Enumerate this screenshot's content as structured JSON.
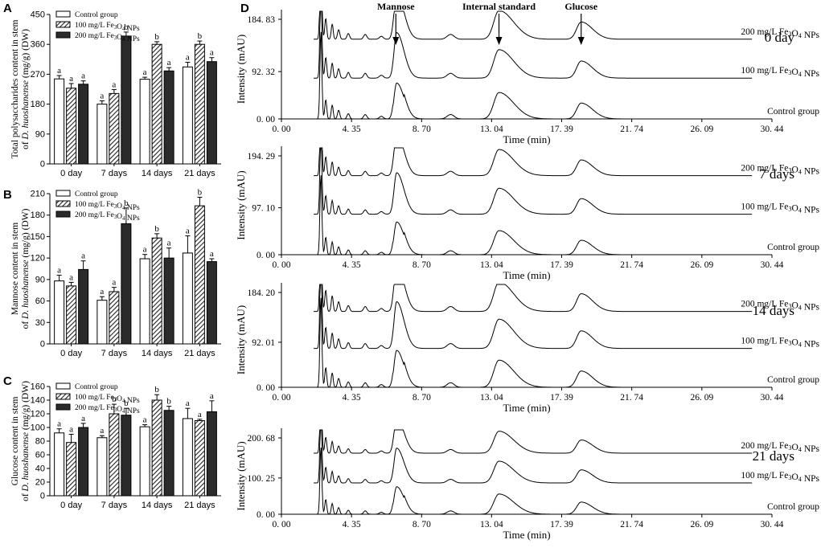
{
  "chart_data": [
    {
      "panel": "A",
      "type": "bar",
      "ylabel": "Total polysaccharides content in stem of D. huoshanense (mg/g) (DW)",
      "ylim": [
        0,
        450
      ],
      "yticks": [
        "0",
        "90",
        "180",
        "270",
        "360",
        "450"
      ],
      "categories": [
        "0 day",
        "7 days",
        "14 days",
        "21 days"
      ],
      "legend_position": "top-left",
      "series": [
        {
          "name": "Control group",
          "values": [
            256,
            180,
            255,
            292
          ],
          "errors": [
            10,
            10,
            6,
            14
          ],
          "letters": [
            "a",
            "a",
            "a",
            "a"
          ]
        },
        {
          "name": "100 mg/L Fe3O4 NPs",
          "values": [
            228,
            212,
            360,
            360
          ],
          "errors": [
            14,
            12,
            8,
            10
          ],
          "letters": [
            "a",
            "a",
            "b",
            "b"
          ]
        },
        {
          "name": "200 mg/L Fe3O4 NPs",
          "values": [
            240,
            385,
            280,
            308
          ],
          "errors": [
            10,
            12,
            10,
            12
          ],
          "letters": [
            "a",
            "b",
            "a",
            "a"
          ]
        }
      ]
    },
    {
      "panel": "B",
      "type": "bar",
      "ylabel": "Mannose content in stem of D. huoshanense (mg/g) (DW)",
      "ylim": [
        0,
        210
      ],
      "yticks": [
        "0",
        "30",
        "60",
        "90",
        "120",
        "150",
        "180",
        "210"
      ],
      "categories": [
        "0 day",
        "7 days",
        "14 days",
        "21 days"
      ],
      "legend_position": "top-left",
      "series": [
        {
          "name": "Control group",
          "values": [
            88,
            61,
            119,
            127
          ],
          "errors": [
            8,
            5,
            6,
            24
          ],
          "letters": [
            "a",
            "a",
            "a",
            "a"
          ]
        },
        {
          "name": "100 mg/L Fe3O4 NPs",
          "values": [
            81,
            73,
            148,
            193
          ],
          "errors": [
            5,
            6,
            6,
            12
          ],
          "letters": [
            "a",
            "a",
            "b",
            "b"
          ]
        },
        {
          "name": "200 mg/L Fe3O4 NPs",
          "values": [
            104,
            168,
            120,
            115
          ],
          "errors": [
            12,
            22,
            14,
            4
          ],
          "letters": [
            "a",
            "b",
            "a",
            "a"
          ]
        }
      ]
    },
    {
      "panel": "C",
      "type": "bar",
      "ylabel": "Glucose content in stem of D. huoshanense (mg/g) (DW)",
      "ylim": [
        0,
        160
      ],
      "yticks": [
        "0",
        "20",
        "40",
        "60",
        "80",
        "100",
        "120",
        "140",
        "160"
      ],
      "categories": [
        "0 day",
        "7 days",
        "14 days",
        "21 days"
      ],
      "legend_position": "top-left",
      "series": [
        {
          "name": "Control group",
          "values": [
            92,
            85,
            101,
            113
          ],
          "errors": [
            6,
            3,
            3,
            15
          ],
          "letters": [
            "a",
            "a",
            "a",
            "a"
          ]
        },
        {
          "name": "100 mg/L Fe3O4 NPs",
          "values": [
            78,
            120,
            140,
            110
          ],
          "errors": [
            12,
            14,
            8,
            2
          ],
          "letters": [
            "a",
            "b",
            "b",
            "a"
          ]
        },
        {
          "name": "200 mg/L Fe3O4 NPs",
          "values": [
            100,
            118,
            125,
            123
          ],
          "errors": [
            6,
            10,
            6,
            16
          ],
          "letters": [
            "a",
            "b",
            "b",
            "a"
          ]
        }
      ]
    },
    {
      "panel": "D",
      "type": "line",
      "xlabel": "Time (min)",
      "ylabel": "Intensity (mAU)",
      "xlim": [
        0,
        30.44
      ],
      "xticks": [
        "0. 00",
        "4. 35",
        "8. 70",
        "13. 04",
        "17. 39",
        "21. 74",
        "26. 09",
        "30. 44"
      ],
      "peak_labels": [
        {
          "text": "Mannose",
          "x": 7.1
        },
        {
          "text": "Internal standard",
          "x": 13.5
        },
        {
          "text": "Glucose",
          "x": 18.6
        }
      ],
      "trace_labels": [
        "200 mg/L Fe3O4 NPs",
        "100 mg/L Fe3O4 NPs",
        "Control group"
      ],
      "subplots": [
        {
          "day_label": "0 day",
          "yticks": [
            "0. 00",
            "92. 32",
            "184. 83"
          ],
          "ylim": [
            0,
            184.83
          ]
        },
        {
          "day_label": "7 days",
          "yticks": [
            "0. 00",
            "97. 10",
            "194. 29"
          ],
          "ylim": [
            0,
            194.29
          ]
        },
        {
          "day_label": "14 days",
          "yticks": [
            "0. 00",
            "92. 01",
            "184. 20"
          ],
          "ylim": [
            0,
            184.2
          ]
        },
        {
          "day_label": "21 days",
          "yticks": [
            "0. 00",
            "100. 25",
            "200. 68"
          ],
          "ylim": [
            0,
            200.68
          ]
        }
      ]
    }
  ]
}
